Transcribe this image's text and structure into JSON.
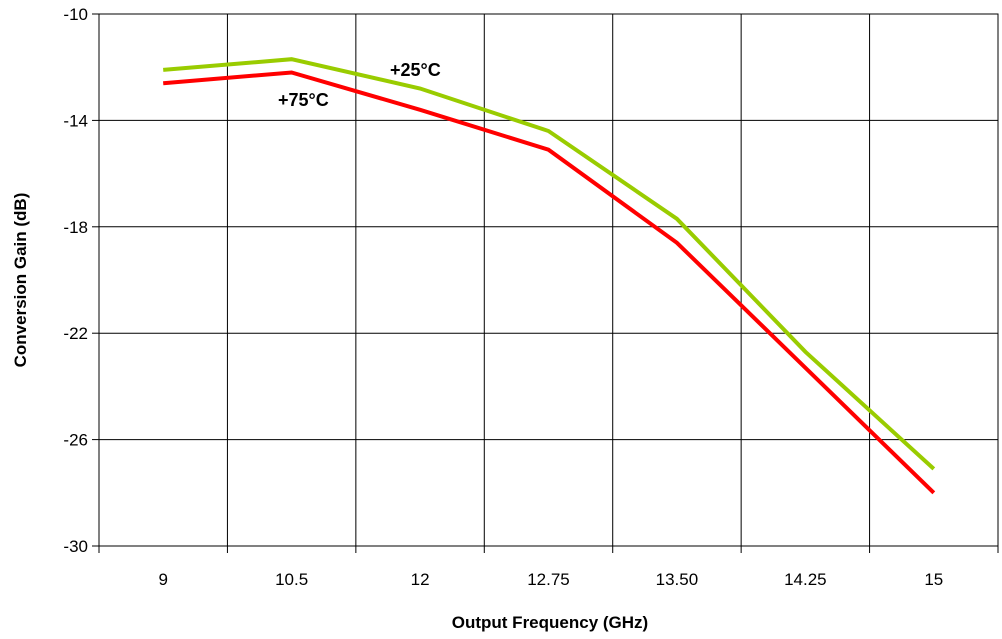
{
  "chart_data": {
    "type": "line",
    "categories": [
      "9",
      "10.5",
      "12",
      "12.75",
      "13.50",
      "14.25",
      "15"
    ],
    "series": [
      {
        "name": "+25°C",
        "color": "#99cc00",
        "values": [
          -12.1,
          -11.7,
          -12.8,
          -14.4,
          -17.7,
          -22.7,
          -27.1
        ]
      },
      {
        "name": "+75°C",
        "color": "#ff0000",
        "values": [
          -12.6,
          -12.2,
          -13.6,
          -15.1,
          -18.6,
          -23.3,
          -28.0
        ]
      }
    ],
    "title": "",
    "xlabel": "Output Frequency (GHz)",
    "ylabel": "Conversion Gain (dB)",
    "ylim": [
      -30,
      -10
    ],
    "yticks": [
      "-10",
      "-14",
      "-18",
      "-22",
      "-26",
      "-30"
    ],
    "grid": true,
    "legend": "none"
  }
}
